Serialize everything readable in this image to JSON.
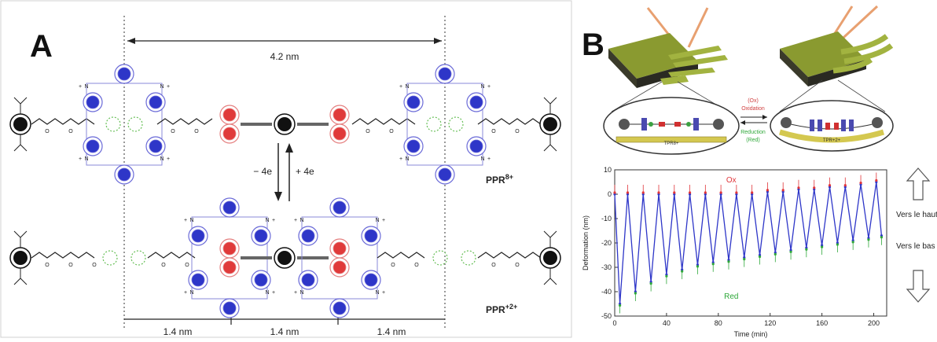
{
  "panel_a": {
    "label": "A",
    "dimension_top": "4.2 nm",
    "dimension_bottom": [
      "1.4 nm",
      "1.4 nm",
      "1.4 nm"
    ],
    "reduction_label": "− 4e",
    "oxidation_label": "+ 4e",
    "species_top": "PPR",
    "species_top_charge": "8+",
    "species_bottom": "PPR",
    "species_bottom_charge": "+2+",
    "atom_n": "N",
    "atom_o": "O",
    "plus": "+"
  },
  "panel_b": {
    "label": "B",
    "cantilever_left_label": "TPR8+",
    "cantilever_right_label": "TPR+2+",
    "oxidation_label": "(Ox)",
    "oxidation_word": "Oxidation",
    "reduction_word": "Reduction",
    "reduction_label": "(Red)",
    "vers_le_haut": "Vers le haut",
    "vers_le_bas": "Vers le bas"
  },
  "chart_data": {
    "type": "line",
    "title": "",
    "xlabel": "Time (min)",
    "ylabel": "Deformation (nm)",
    "xlim": [
      0,
      210
    ],
    "ylim": [
      -50,
      10
    ],
    "xticks": [
      0,
      40,
      80,
      120,
      160,
      200
    ],
    "yticks": [
      10,
      0,
      -10,
      -20,
      -30,
      -40,
      -50
    ],
    "annotation_top": "Ox",
    "annotation_bottom": "Red",
    "colors": {
      "trace": "#2e36c8",
      "ox": "#e0353a",
      "red": "#2fa83a"
    },
    "series": [
      {
        "values": [
          [
            0,
            0
          ],
          [
            4,
            -45
          ],
          [
            10,
            0
          ],
          [
            16,
            -40
          ],
          [
            22,
            0
          ],
          [
            28,
            -36
          ],
          [
            34,
            0
          ],
          [
            40,
            -33
          ],
          [
            46,
            0
          ],
          [
            52,
            -31
          ],
          [
            58,
            0
          ],
          [
            64,
            -29
          ],
          [
            70,
            0
          ],
          [
            76,
            -28
          ],
          [
            82,
            0
          ],
          [
            88,
            -27
          ],
          [
            94,
            0
          ],
          [
            100,
            -26
          ],
          [
            106,
            0
          ],
          [
            112,
            -25
          ],
          [
            118,
            1
          ],
          [
            124,
            -24
          ],
          [
            130,
            1
          ],
          [
            136,
            -23
          ],
          [
            142,
            2
          ],
          [
            148,
            -22
          ],
          [
            154,
            2
          ],
          [
            160,
            -21
          ],
          [
            166,
            3
          ],
          [
            172,
            -20
          ],
          [
            178,
            3
          ],
          [
            184,
            -19
          ],
          [
            190,
            4
          ],
          [
            196,
            -18
          ],
          [
            202,
            5
          ],
          [
            206,
            -17
          ]
        ]
      }
    ]
  }
}
